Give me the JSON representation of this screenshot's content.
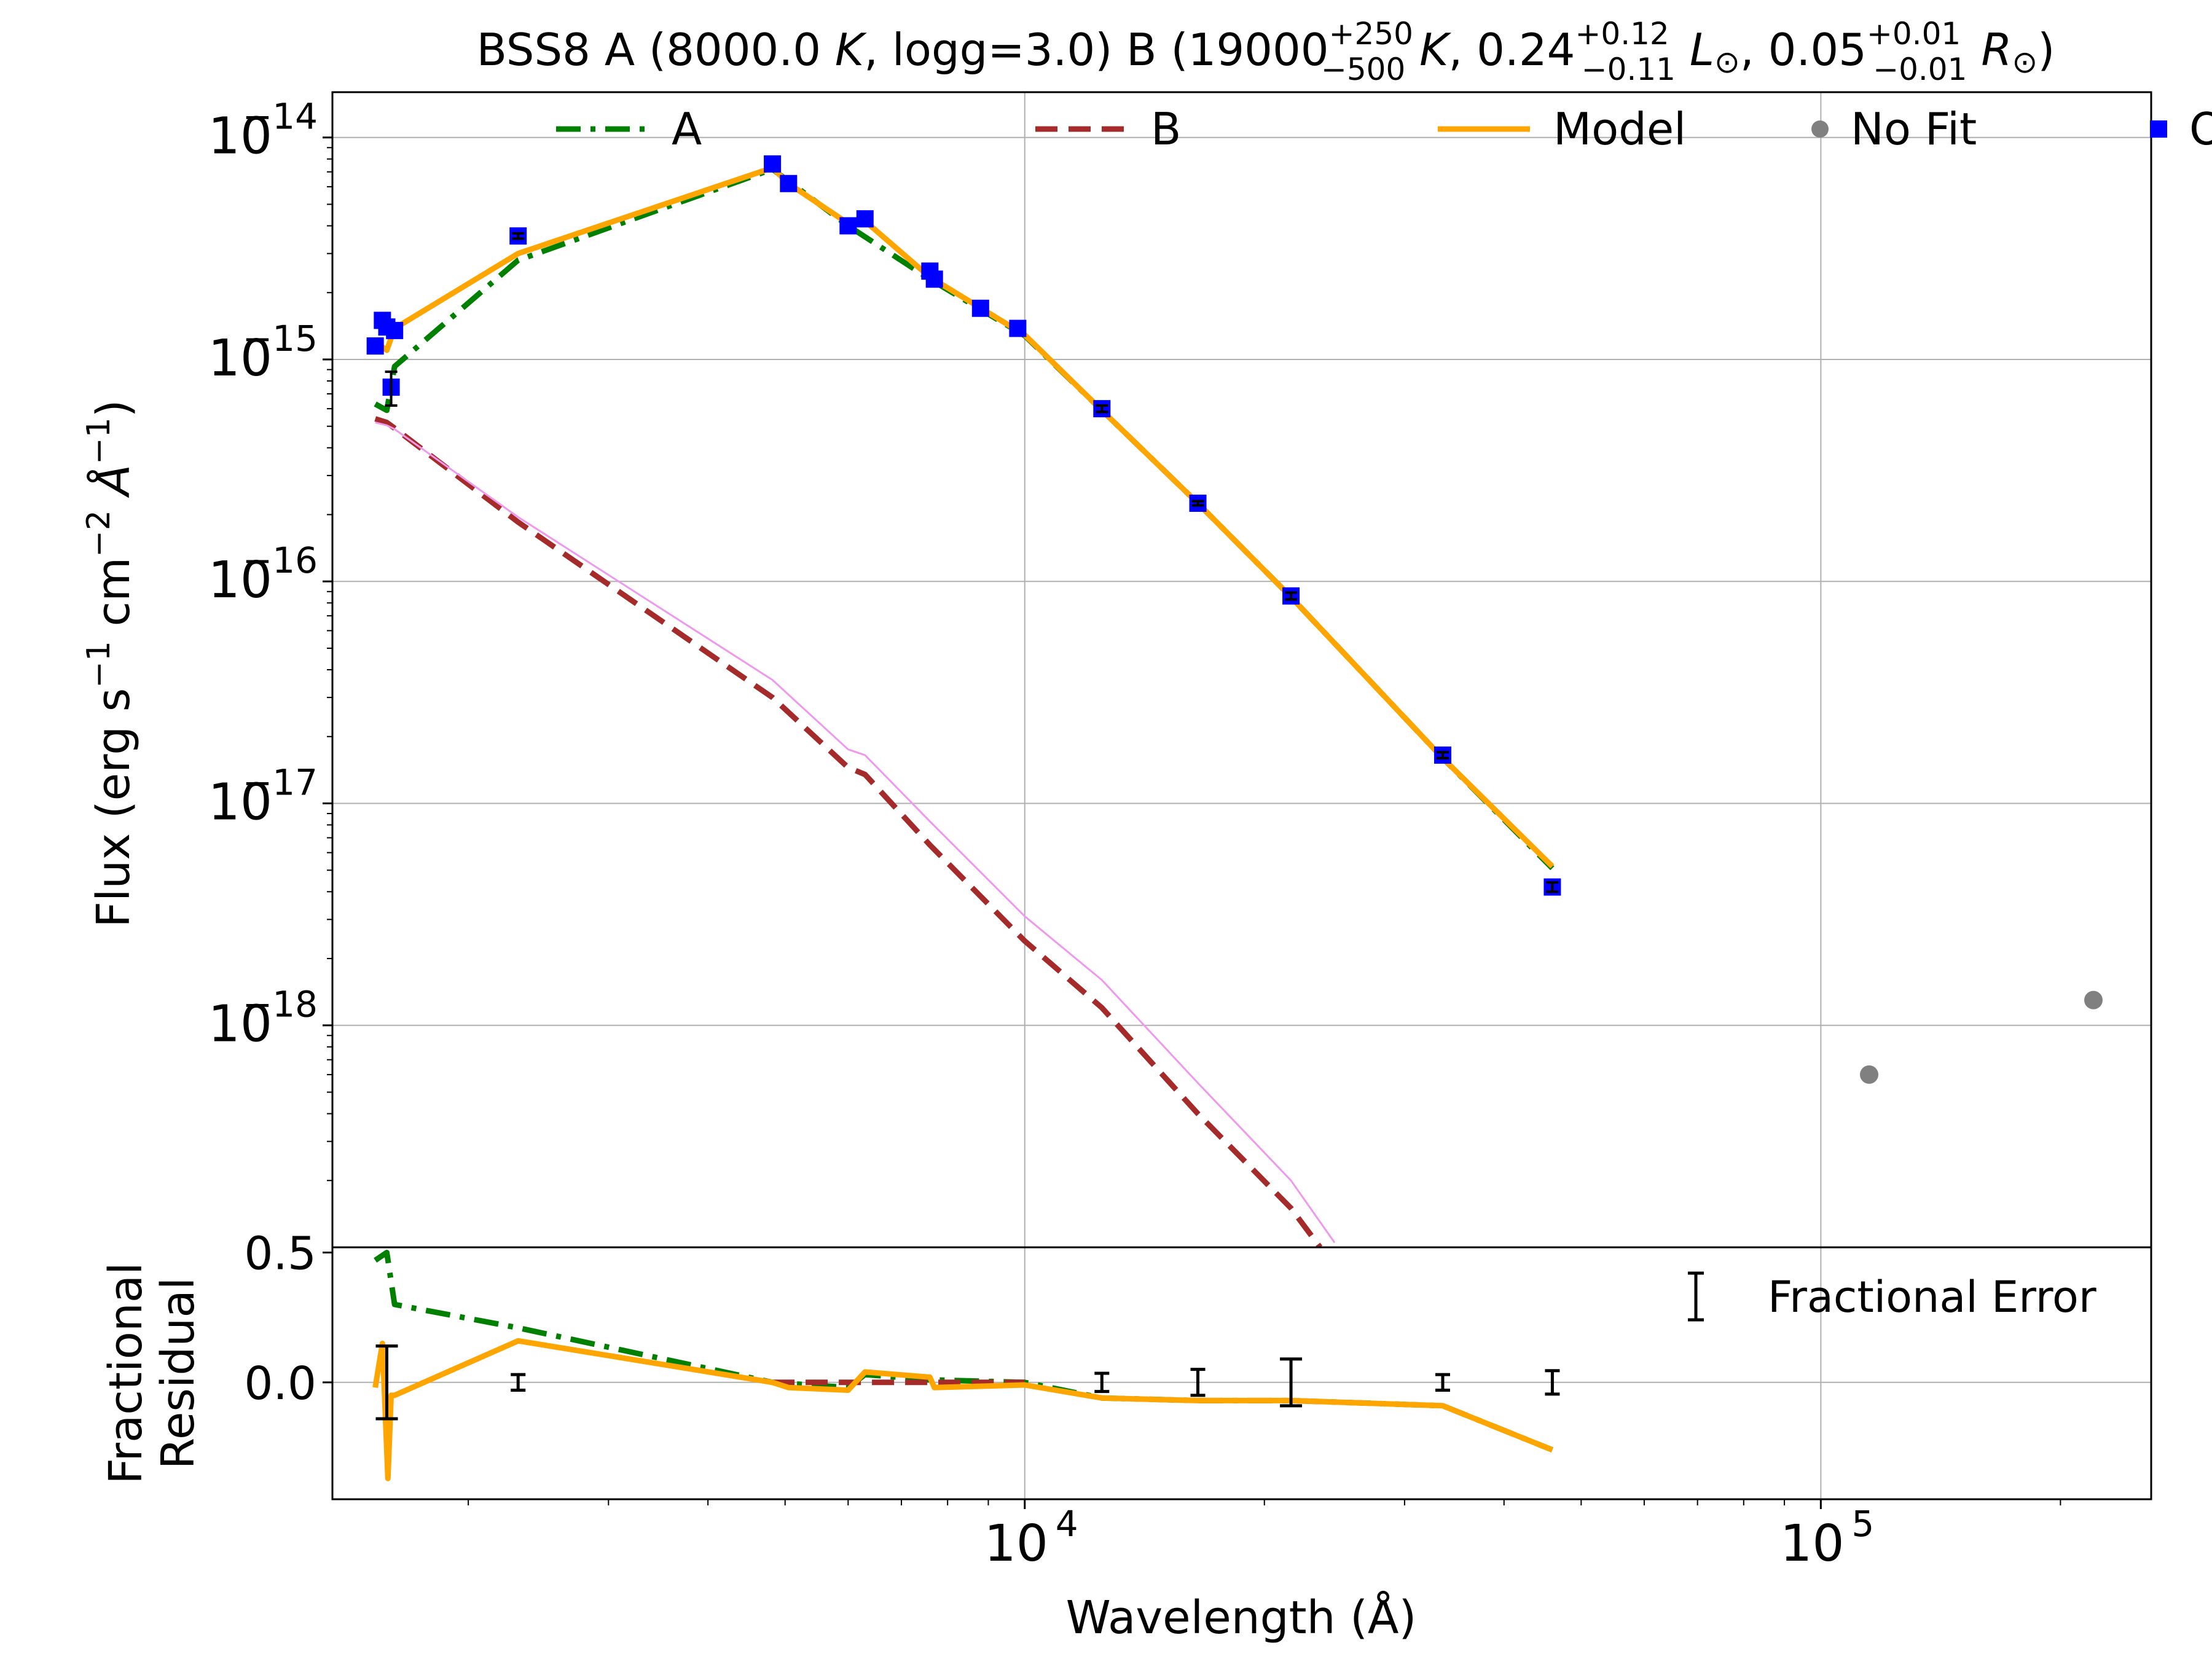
{
  "title": {
    "prefix": "BSS8  A (8000.0 ",
    "prefix_k": "K",
    "prefix_logg": ", logg=3.0)  B (19000",
    "temp_up": "+250",
    "temp_dn": "−500",
    "k2": " K",
    "lum": ", 0.24",
    "lum_up": "+0.12",
    "lum_dn": "−0.11",
    "lum_unit": " L",
    "sun1": "⊙",
    "rad": ", 0.05",
    "rad_up": "+0.01",
    "rad_dn": "−0.01",
    "rad_unit": " R",
    "sun2": "⊙",
    "close": ")"
  },
  "colors": {
    "A": "#008000",
    "B": "#a52a2a",
    "Model": "#ffa500",
    "NoFit": "#808080",
    "Obs": "#0000ff",
    "Extra": "#ee99ee",
    "Error": "#000000"
  },
  "chart_data": [
    {
      "type": "line",
      "x_scale": "log",
      "y_scale": "log",
      "xlim": [
        1350,
        260000
      ],
      "ylim": [
        1e-19,
        1.6e-14
      ],
      "ylabel": "Flux (erg s⁻¹ cm⁻² Å⁻¹)",
      "y_ticks": [
        {
          "value": 1e-14,
          "base": "10",
          "exp": "−14"
        },
        {
          "value": 1e-15,
          "base": "10",
          "exp": "−15"
        },
        {
          "value": 1e-16,
          "base": "10",
          "exp": "−16"
        },
        {
          "value": 1e-17,
          "base": "10",
          "exp": "−17"
        },
        {
          "value": 1e-18,
          "base": "10",
          "exp": "−18"
        }
      ],
      "grid": true,
      "legend": {
        "position": "top",
        "entries": [
          {
            "key": "A",
            "label": "A",
            "style": "dashdot"
          },
          {
            "key": "B",
            "label": "B",
            "style": "dashed"
          },
          {
            "key": "Model",
            "label": "Model",
            "style": "solid"
          },
          {
            "key": "NoFit",
            "label": "No Fit",
            "style": "circle"
          },
          {
            "key": "Obs",
            "label": "Obs",
            "style": "square"
          }
        ]
      },
      "series": [
        {
          "name": "A",
          "key": "A",
          "style": "dashdot",
          "x": [
            1528,
            1580,
            1616,
            2310,
            4820,
            6000,
            7600,
            10000,
            12500,
            16500,
            21600,
            33500,
            46000
          ],
          "y": [
            6.3e-16,
            5.9e-16,
            9.3e-16,
            2.8e-15,
            7.2e-15,
            4e-15,
            2.3e-15,
            1.28e-15,
            5.9e-16,
            2.25e-16,
            8.5e-17,
            1.6e-17,
            5.1e-18
          ]
        },
        {
          "name": "B",
          "key": "B",
          "style": "dashed",
          "x": [
            1528,
            1580,
            1616,
            2310,
            4820,
            6000,
            6300,
            7600,
            10000,
            12500,
            16500,
            21600,
            23500
          ],
          "y": [
            5.4e-16,
            5.2e-16,
            4.9e-16,
            1.85e-16,
            3e-17,
            1.45e-17,
            1.35e-17,
            6.5e-18,
            2.4e-18,
            1.2e-18,
            4e-19,
            1.5e-19,
            1e-19
          ]
        },
        {
          "name": "B (upper)",
          "key": "Extra",
          "style": "thin",
          "x": [
            1528,
            1580,
            1616,
            2310,
            4820,
            6000,
            6300,
            7600,
            10000,
            12500,
            16500,
            21600,
            24500
          ],
          "y": [
            5.2e-16,
            5.05e-16,
            4.85e-16,
            1.95e-16,
            3.6e-17,
            1.75e-17,
            1.65e-17,
            8.3e-18,
            3.1e-18,
            1.6e-18,
            5.5e-19,
            2e-19,
            1.05e-19
          ]
        },
        {
          "name": "Model",
          "key": "Model",
          "style": "solid",
          "x": [
            1528,
            1580,
            1616,
            2310,
            4820,
            5050,
            6000,
            6300,
            7600,
            10000,
            12500,
            16500,
            21600,
            33500,
            46000
          ],
          "y": [
            1.2e-15,
            1.1e-15,
            1.38e-15,
            3e-15,
            7.3e-15,
            6.2e-15,
            4.1e-15,
            4.2e-15,
            2.35e-15,
            1.29e-15,
            5.9e-16,
            2.25e-16,
            8.5e-17,
            1.6e-17,
            5.2e-18
          ]
        }
      ],
      "obs": {
        "x": [
          1528,
          1560,
          1580,
          1600,
          1616,
          2310,
          4820,
          5050,
          6000,
          6300,
          7600,
          7700,
          8800,
          9800,
          12500,
          16500,
          21600,
          33500,
          46000
        ],
        "y": [
          1.15e-15,
          1.5e-15,
          1.4e-15,
          7.5e-16,
          1.35e-15,
          3.6e-15,
          7.6e-15,
          6.2e-15,
          4e-15,
          4.3e-15,
          2.5e-15,
          2.3e-15,
          1.7e-15,
          1.38e-15,
          6e-16,
          2.25e-16,
          8.6e-17,
          1.65e-17,
          4.2e-18
        ],
        "err_lo": [
          0,
          0,
          0,
          6.2e-16,
          0,
          3.5e-15,
          0,
          0,
          0,
          0,
          0,
          0,
          0,
          0,
          5.8e-16,
          2.2e-16,
          8.3e-17,
          1.6e-17,
          4e-18
        ],
        "err_hi": [
          0,
          0,
          0,
          8.8e-16,
          0,
          3.7e-15,
          0,
          0,
          0,
          0,
          0,
          0,
          0,
          0,
          6.2e-16,
          2.3e-16,
          8.9e-17,
          1.7e-17,
          4.4e-18
        ]
      },
      "nofit": {
        "x": [
          115000,
          220000
        ],
        "y": [
          6e-19,
          1.3e-18
        ]
      }
    },
    {
      "type": "line",
      "x_scale": "log",
      "xlim": [
        1350,
        260000
      ],
      "ylim": [
        -0.45,
        0.52
      ],
      "ylabel_line1": "Fractional",
      "ylabel_line2": "Residual",
      "xlabel": "Wavelength (Å)",
      "y_ticks": [
        {
          "value": 0.5,
          "label": "0.5"
        },
        {
          "value": 0.0,
          "label": "0.0"
        }
      ],
      "x_ticks": [
        {
          "value": 10000,
          "base": "10",
          "exp": "4"
        },
        {
          "value": 100000,
          "base": "10",
          "exp": "5"
        }
      ],
      "legend": {
        "position": "top-right",
        "label": "Fractional Error"
      },
      "series": [
        {
          "name": "A",
          "key": "A",
          "style": "dashdot",
          "x": [
            1528,
            1580,
            1616,
            2310,
            4820,
            6000,
            6300,
            7600,
            10000,
            12500,
            16500,
            21600,
            33500,
            46000
          ],
          "y": [
            0.47,
            0.5,
            0.3,
            0.21,
            0.0,
            -0.02,
            0.03,
            0.01,
            0.0,
            -0.06,
            -0.07,
            -0.07,
            -0.09,
            -0.26
          ]
        },
        {
          "name": "B",
          "key": "B",
          "style": "dashed",
          "x": [
            4820,
            6000,
            6300,
            7600,
            10000
          ],
          "y": [
            0.0,
            0.0,
            0.0,
            0.0,
            0.0
          ]
        },
        {
          "name": "Model",
          "key": "Model",
          "style": "solid",
          "x": [
            1528,
            1560,
            1585,
            1600,
            1616,
            2310,
            4820,
            5050,
            6000,
            6300,
            7600,
            7700,
            10000,
            12500,
            16500,
            21600,
            33500,
            46000
          ],
          "y": [
            -0.02,
            0.15,
            -0.37,
            -0.05,
            -0.05,
            0.16,
            0.0,
            -0.02,
            -0.03,
            0.04,
            0.02,
            -0.02,
            -0.01,
            -0.06,
            -0.07,
            -0.07,
            -0.09,
            -0.26
          ]
        }
      ],
      "errors": {
        "x": [
          1580,
          2310,
          12500,
          16500,
          21600,
          33500,
          46000
        ],
        "half": [
          0.14,
          0.03,
          0.035,
          0.05,
          0.09,
          0.03,
          0.045
        ]
      }
    }
  ]
}
